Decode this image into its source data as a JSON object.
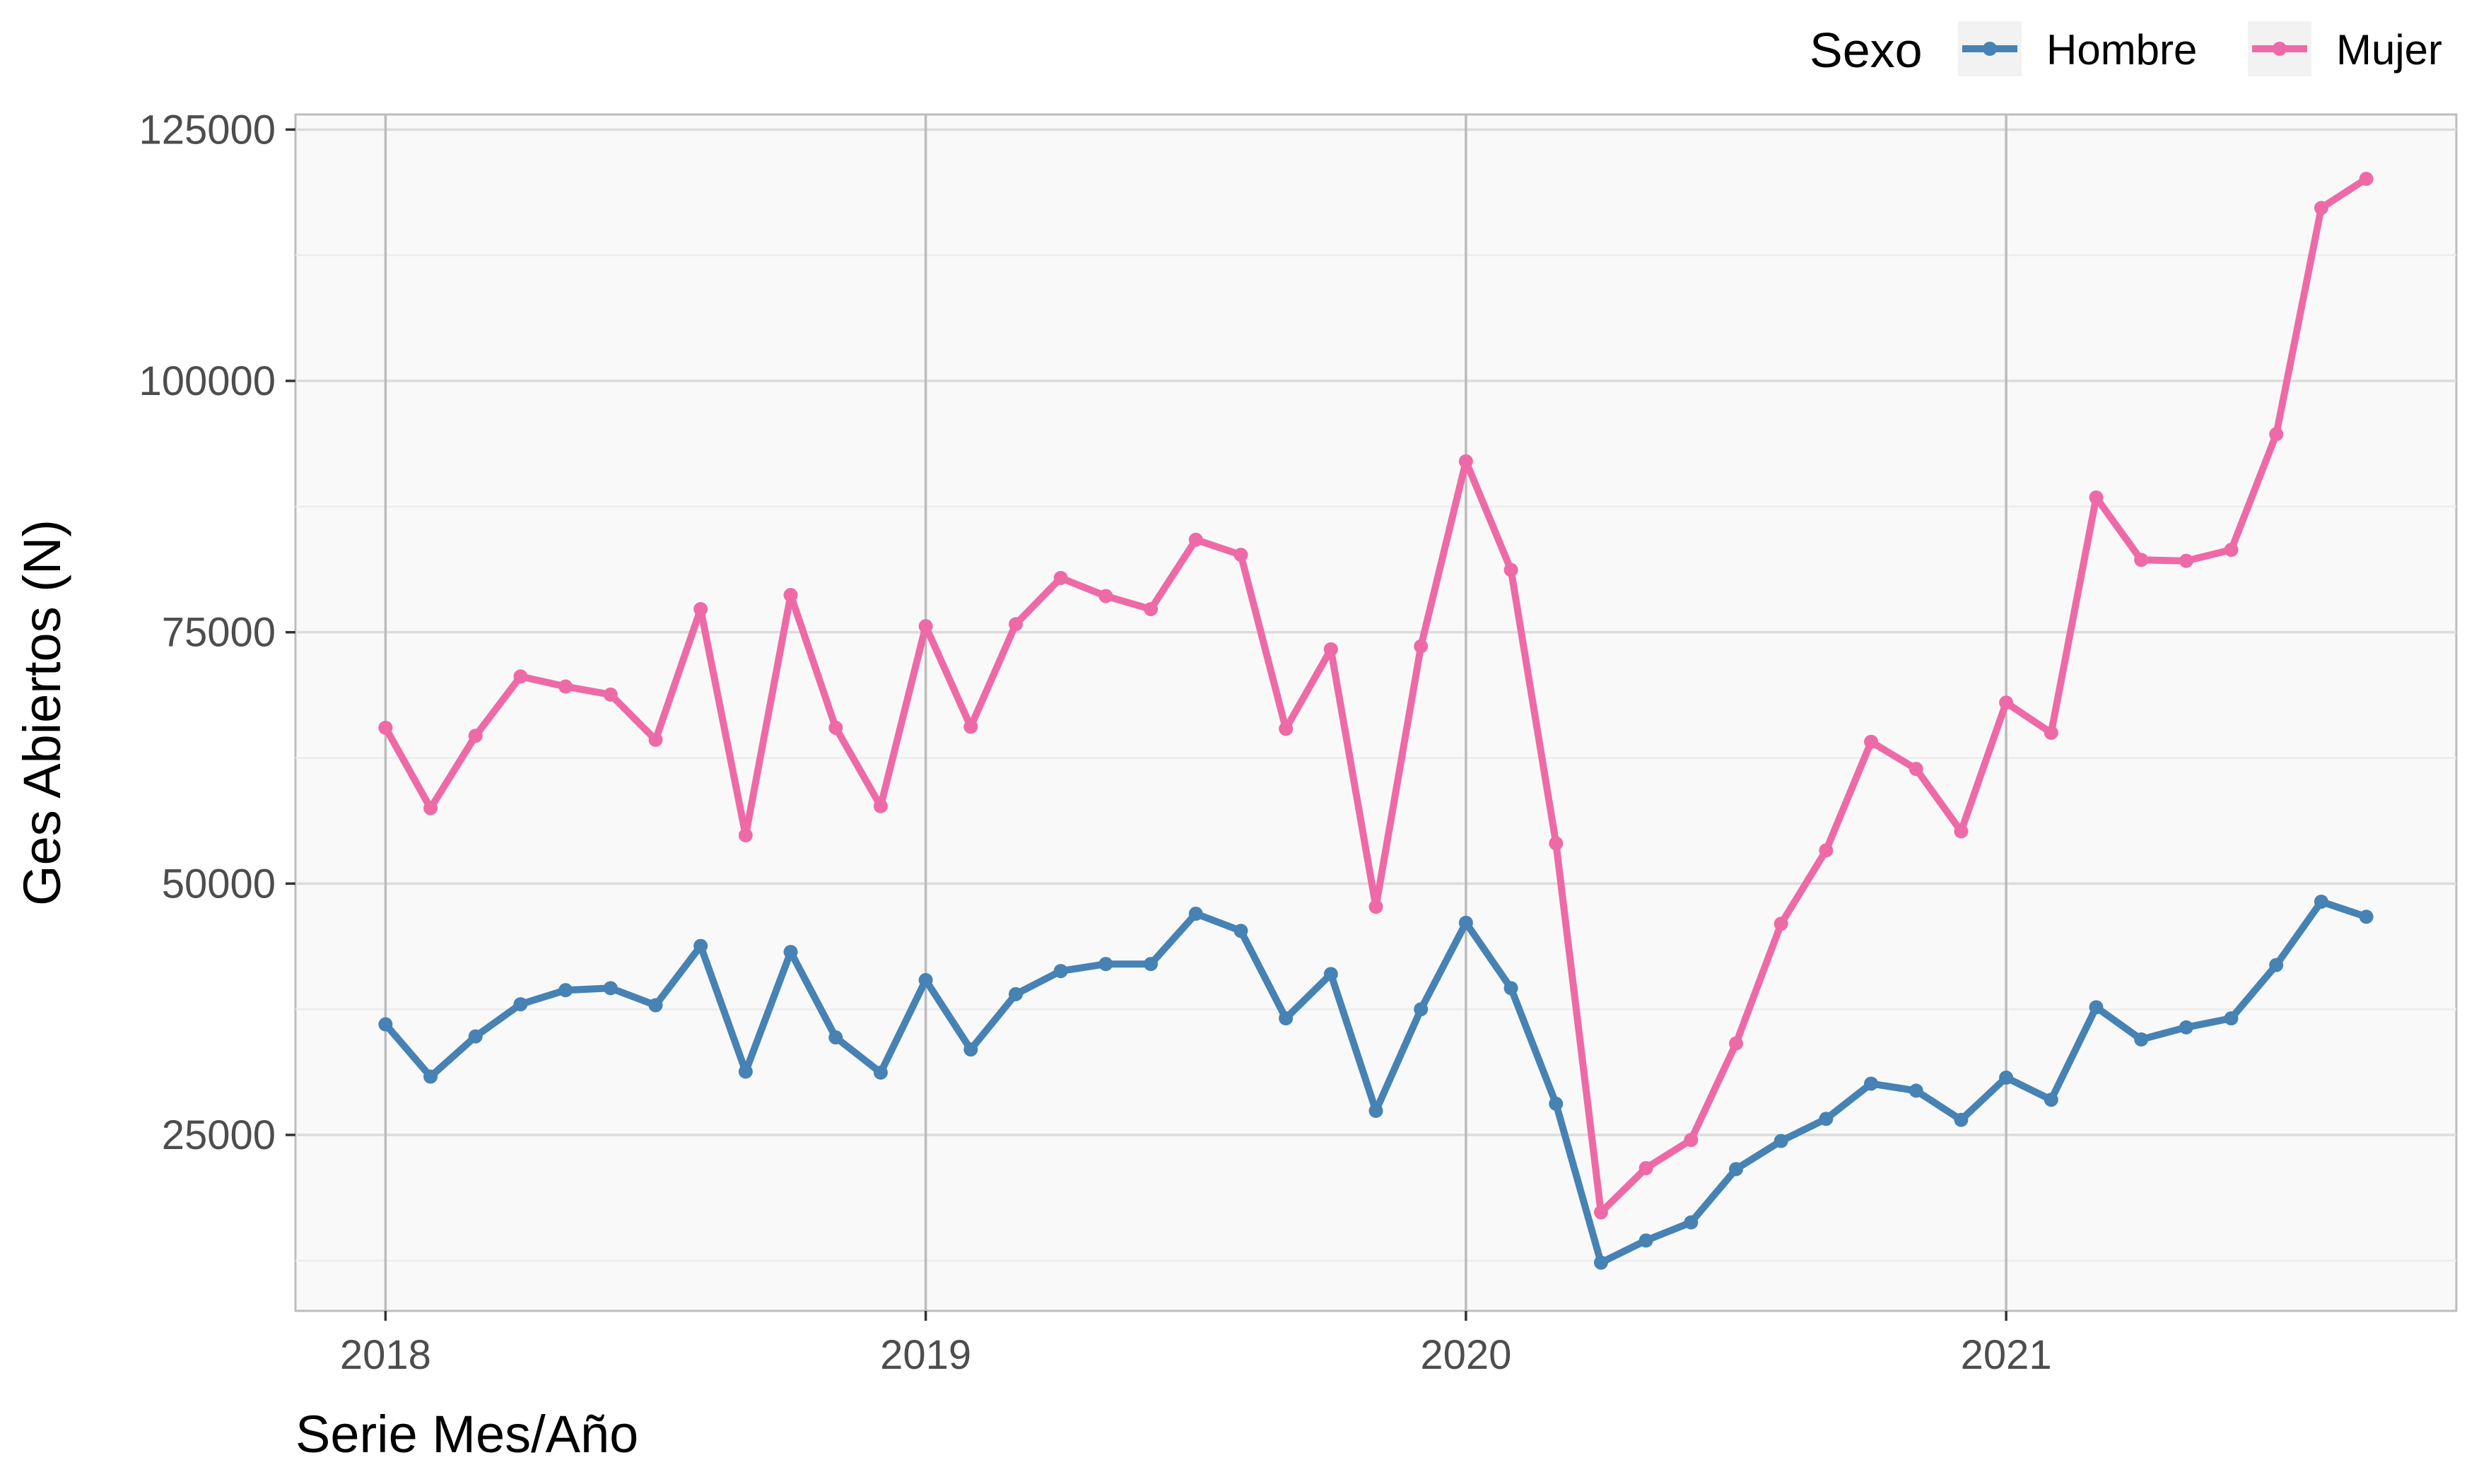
{
  "chart_data": {
    "type": "line",
    "title": "",
    "xlabel": "Serie Mes/Año",
    "ylabel": "Ges Abiertos (N)",
    "x_start": "2018-01",
    "x_ticks": [
      {
        "label": "2018",
        "month": "2018-01"
      },
      {
        "label": "2019",
        "month": "2019-01"
      },
      {
        "label": "2020",
        "month": "2020-01"
      },
      {
        "label": "2021",
        "month": "2021-01"
      }
    ],
    "y_ticks": [
      25000,
      50000,
      75000,
      100000,
      125000
    ],
    "xlim": [
      "2017-11",
      "2021-11"
    ],
    "ylim": [
      7500,
      126500
    ],
    "grid": true,
    "legend": {
      "title": "Sexo",
      "position": "top-right"
    },
    "series": [
      {
        "name": "Hombre",
        "color": "#4682B4",
        "values": [
          36000,
          30800,
          34800,
          38000,
          39400,
          39600,
          37900,
          43800,
          31300,
          43200,
          34700,
          31200,
          40400,
          33500,
          39000,
          41300,
          42000,
          42000,
          47000,
          45300,
          36600,
          41000,
          27400,
          37500,
          46100,
          39600,
          28100,
          12300,
          14500,
          16300,
          21600,
          24400,
          26600,
          30100,
          29400,
          26500,
          30700,
          28500,
          37700,
          34500,
          35700,
          36600,
          41900,
          48200,
          46700
        ]
      },
      {
        "name": "Mujer",
        "color": "#EE6AA7",
        "values": [
          65500,
          57500,
          64700,
          70600,
          69600,
          68800,
          64300,
          77300,
          54800,
          78700,
          65500,
          57700,
          75600,
          65600,
          75800,
          80400,
          78600,
          77300,
          84200,
          82700,
          65400,
          73300,
          47700,
          73600,
          92000,
          81200,
          54000,
          17300,
          21700,
          24500,
          34100,
          46000,
          53300,
          64100,
          61400,
          55200,
          68000,
          65000,
          88400,
          82200,
          82100,
          83200,
          94700,
          117200,
          120100
        ]
      }
    ]
  }
}
